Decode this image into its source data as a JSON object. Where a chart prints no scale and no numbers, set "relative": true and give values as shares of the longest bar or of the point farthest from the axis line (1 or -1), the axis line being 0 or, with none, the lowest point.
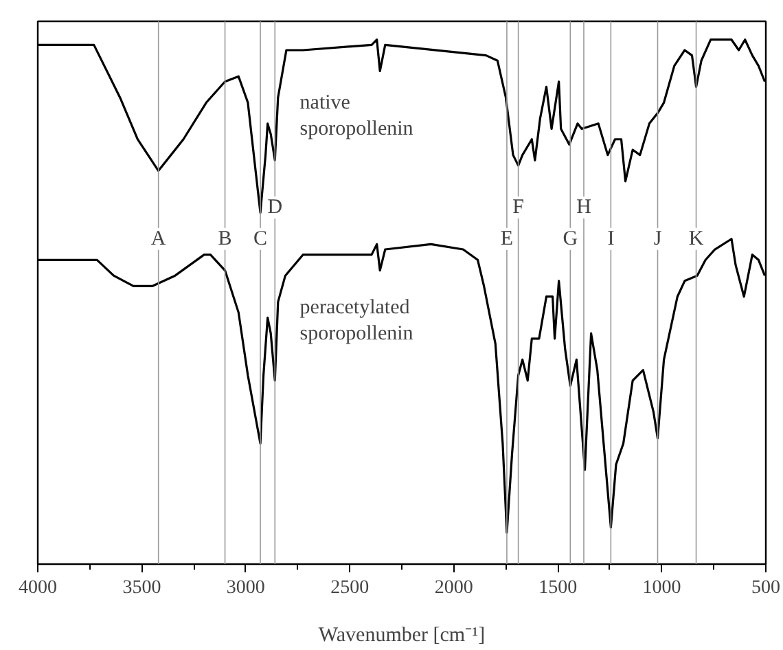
{
  "chart_data": {
    "type": "line",
    "relative": true,
    "xlabel": "Wavenumber [cm⁻¹]",
    "xlim": [
      4000,
      500
    ],
    "xticks": [
      4000,
      3500,
      3000,
      2500,
      2000,
      1500,
      1000,
      500
    ],
    "grid": false,
    "line_style": "solid",
    "marker": "none",
    "series": [
      {
        "name": "native sporopollenin",
        "color": "#000000",
        "x": [
          4000,
          3730,
          3605,
          3520,
          3420,
          3300,
          3190,
          3100,
          3035,
          2990,
          2930,
          2905,
          2895,
          2880,
          2860,
          2845,
          2805,
          2725,
          2395,
          2370,
          2355,
          2330,
          1845,
          1790,
          1750,
          1715,
          1690,
          1670,
          1625,
          1610,
          1585,
          1555,
          1530,
          1495,
          1485,
          1445,
          1405,
          1385,
          1305,
          1260,
          1225,
          1195,
          1175,
          1140,
          1105,
          1060,
          1020,
          990,
          940,
          890,
          855,
          835,
          810,
          765,
          725,
          690,
          665,
          630,
          600,
          565,
          535,
          505
        ],
        "values": [
          0.99,
          0.99,
          0.89,
          0.81,
          0.75,
          0.81,
          0.88,
          0.92,
          0.93,
          0.88,
          0.67,
          0.78,
          0.84,
          0.82,
          0.77,
          0.89,
          0.98,
          0.98,
          0.99,
          1.0,
          0.94,
          0.99,
          0.97,
          0.96,
          0.89,
          0.78,
          0.76,
          0.78,
          0.81,
          0.77,
          0.85,
          0.91,
          0.83,
          0.92,
          0.83,
          0.8,
          0.84,
          0.83,
          0.84,
          0.78,
          0.81,
          0.81,
          0.73,
          0.79,
          0.78,
          0.84,
          0.86,
          0.88,
          0.95,
          0.98,
          0.97,
          0.91,
          0.96,
          1.0,
          1.0,
          1.0,
          1.0,
          0.98,
          1.0,
          0.97,
          0.95,
          0.92
        ]
      },
      {
        "name": "peracetylated sporopollenin",
        "color": "#000000",
        "x": [
          4000,
          3715,
          3635,
          3540,
          3450,
          3340,
          3200,
          3170,
          3100,
          3035,
          2990,
          2930,
          2915,
          2895,
          2880,
          2860,
          2845,
          2810,
          2725,
          2395,
          2370,
          2355,
          2330,
          2110,
          1955,
          1885,
          1855,
          1800,
          1765,
          1745,
          1720,
          1690,
          1670,
          1645,
          1625,
          1590,
          1555,
          1525,
          1515,
          1495,
          1465,
          1440,
          1410,
          1370,
          1340,
          1310,
          1245,
          1220,
          1185,
          1140,
          1090,
          1040,
          1020,
          990,
          925,
          890,
          830,
          790,
          745,
          665,
          645,
          605,
          565,
          535,
          505
        ],
        "values": [
          0.58,
          0.58,
          0.55,
          0.53,
          0.53,
          0.55,
          0.59,
          0.59,
          0.56,
          0.48,
          0.36,
          0.23,
          0.36,
          0.47,
          0.44,
          0.35,
          0.5,
          0.55,
          0.59,
          0.59,
          0.61,
          0.56,
          0.6,
          0.61,
          0.6,
          0.58,
          0.53,
          0.42,
          0.23,
          0.06,
          0.21,
          0.36,
          0.39,
          0.35,
          0.43,
          0.43,
          0.51,
          0.51,
          0.43,
          0.54,
          0.41,
          0.34,
          0.39,
          0.18,
          0.44,
          0.37,
          0.07,
          0.19,
          0.23,
          0.35,
          0.37,
          0.29,
          0.24,
          0.39,
          0.51,
          0.54,
          0.55,
          0.58,
          0.6,
          0.62,
          0.57,
          0.51,
          0.59,
          0.58,
          0.55
        ]
      }
    ],
    "ref_lines": [
      {
        "axis": "x",
        "value": 3420,
        "label": "A",
        "color": "#999999"
      },
      {
        "axis": "x",
        "value": 3100,
        "label": "B",
        "color": "#999999"
      },
      {
        "axis": "x",
        "value": 2930,
        "label": "C",
        "color": "#999999"
      },
      {
        "axis": "x",
        "value": 2860,
        "label": "D",
        "color": "#999999"
      },
      {
        "axis": "x",
        "value": 1745,
        "label": "E",
        "color": "#999999"
      },
      {
        "axis": "x",
        "value": 1690,
        "label": "F",
        "color": "#999999"
      },
      {
        "axis": "x",
        "value": 1440,
        "label": "G",
        "color": "#999999"
      },
      {
        "axis": "x",
        "value": 1375,
        "label": "H",
        "color": "#999999"
      },
      {
        "axis": "x",
        "value": 1245,
        "label": "I",
        "color": "#999999"
      },
      {
        "axis": "x",
        "value": 1020,
        "label": "J",
        "color": "#999999"
      },
      {
        "axis": "x",
        "value": 835,
        "label": "K",
        "color": "#999999"
      }
    ]
  }
}
